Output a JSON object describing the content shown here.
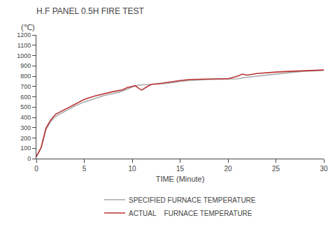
{
  "chart_data": {
    "type": "line",
    "title": "H.F PANEL 0.5H FIRE TEST",
    "xlabel": "TIME (Minute)",
    "ylabel": "(℃)",
    "xlim": [
      0,
      30
    ],
    "ylim": [
      0,
      1200
    ],
    "xticks": [
      0,
      5,
      10,
      15,
      20,
      25,
      30
    ],
    "yticks": [
      0,
      100,
      200,
      300,
      400,
      500,
      600,
      700,
      800,
      900,
      1000,
      1100,
      1200
    ],
    "grid": false,
    "legend": "bottom",
    "series": [
      {
        "name": "SPECIFIED FURNACE TEMPERATURE",
        "color": "#aaaaaa",
        "x": [
          0,
          0.5,
          1,
          1.5,
          2,
          3,
          4,
          5,
          6,
          7,
          8,
          9,
          10,
          10.5,
          11,
          12,
          13,
          14,
          15,
          16,
          17,
          18,
          19,
          20,
          21,
          22,
          23,
          24,
          25,
          26,
          27,
          28,
          29,
          30
        ],
        "values": [
          20,
          100,
          280,
          360,
          410,
          460,
          510,
          550,
          580,
          610,
          630,
          655,
          695,
          710,
          715,
          718,
          725,
          735,
          750,
          758,
          765,
          768,
          770,
          772,
          775,
          790,
          800,
          815,
          820,
          830,
          840,
          848,
          852,
          856
        ]
      },
      {
        "name": "ACTUAL    FURNACE TEMPERATURE",
        "color": "#bb3333",
        "x": [
          0,
          0.5,
          1,
          1.5,
          2,
          3,
          4,
          5,
          6,
          7,
          8,
          9,
          9.5,
          10,
          10.3,
          10.7,
          11,
          11.5,
          12,
          13,
          14,
          15,
          16,
          17,
          18,
          19,
          20,
          21,
          21.5,
          22,
          23,
          24,
          25,
          26,
          27,
          28,
          29,
          30
        ],
        "values": [
          20,
          110,
          295,
          375,
          430,
          480,
          530,
          575,
          605,
          630,
          650,
          668,
          690,
          700,
          710,
          680,
          665,
          695,
          720,
          730,
          745,
          758,
          768,
          772,
          773,
          775,
          775,
          800,
          820,
          810,
          825,
          835,
          840,
          845,
          848,
          852,
          858,
          860
        ]
      }
    ]
  }
}
